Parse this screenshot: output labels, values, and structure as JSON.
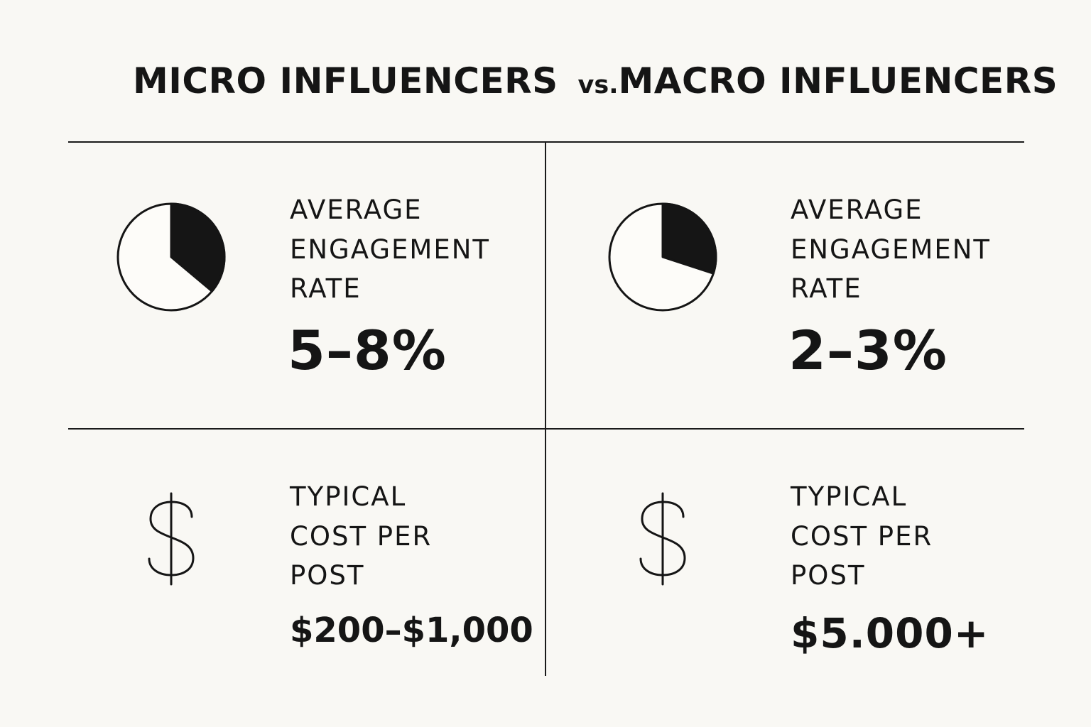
{
  "title": {
    "left": "MICRO INFLUENCERS",
    "vs": "vs.",
    "right": "MACRO INFLUENCERS"
  },
  "micro": {
    "engagement": {
      "label_lines": [
        "AVERAGE",
        "ENGAGEMENT",
        "RATE"
      ],
      "value": "5–8%",
      "icon": "pie-chart-icon"
    },
    "cost": {
      "label_lines": [
        "TYPICAL",
        "COST PER",
        "POST"
      ],
      "value": "$200–$1,000",
      "icon": "dollar-icon"
    }
  },
  "macro": {
    "engagement": {
      "label_lines": [
        "AVERAGE",
        "ENGAGEMENT",
        "RATE"
      ],
      "value": "2–3%",
      "icon": "pie-chart-icon"
    },
    "cost": {
      "label_lines": [
        "TYPICAL",
        "COST PER",
        "POST"
      ],
      "value": "$5.000+",
      "icon": "dollar-icon"
    }
  }
}
